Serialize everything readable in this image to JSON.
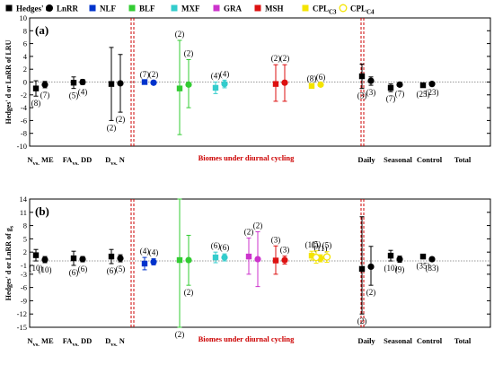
{
  "chart_data": {
    "type": "scatter",
    "legend": {
      "placement": "top",
      "entries": [
        {
          "key": "hedges",
          "label": "Hedges' d",
          "marker": "square",
          "color": "#000000"
        },
        {
          "key": "lnrr",
          "label": "LnRR",
          "marker": "circle",
          "color": "#000000"
        },
        {
          "key": "nlf",
          "label": "NLF",
          "marker": "square",
          "color": "#0033cc"
        },
        {
          "key": "blf",
          "label": "BLF",
          "marker": "square",
          "color": "#33cc33"
        },
        {
          "key": "mxf",
          "label": "MXF",
          "marker": "square",
          "color": "#33cccc"
        },
        {
          "key": "gra",
          "label": "GRA",
          "marker": "square",
          "color": "#cc33cc"
        },
        {
          "key": "msh",
          "label": "MSH",
          "marker": "square",
          "color": "#dd1111"
        },
        {
          "key": "cplc3",
          "label": "CPL",
          "sub": "C3",
          "marker": "square",
          "color": "#f4e400"
        },
        {
          "key": "cplc4",
          "label": "CPL",
          "sub": "C4",
          "marker": "circle-open",
          "color": "#f4e400"
        }
      ]
    },
    "categories": [
      "N vs. ME",
      "FA vs. DD",
      "D vs. N",
      "NLF",
      "BLF",
      "MXF",
      "GRA",
      "MSH",
      "CPL C3",
      "Daily",
      "Seasonal",
      "Control",
      "Total"
    ],
    "category_labels": [
      {
        "main": "N",
        "sub": "vs.",
        "tail": "ME"
      },
      {
        "main": "FA",
        "sub": "vs.",
        "tail": "DD"
      },
      {
        "main": "D",
        "sub": "vs.",
        "tail": "N"
      },
      {
        "main": "Daily"
      },
      {
        "main": "Seasonal"
      },
      {
        "main": "Control"
      },
      {
        "main": "Total"
      }
    ],
    "biome_label": "Biomes under diurnal cycling",
    "panels": [
      {
        "label": "(a)",
        "ylabel": "Hedges' d or LnRR of LRU",
        "ylim": [
          -10,
          10
        ],
        "yticks": [
          -10,
          -8,
          -6,
          -4,
          -2,
          0,
          2,
          4,
          6,
          8,
          10
        ],
        "grid": false,
        "points": [
          {
            "cat": 0,
            "series": "hedges",
            "y": -1.0,
            "lo": -2.2,
            "hi": 0.2,
            "n": "(8)"
          },
          {
            "cat": 0,
            "series": "lnrr",
            "y": -0.4,
            "lo": -0.9,
            "hi": 0.1,
            "n": "(7)"
          },
          {
            "cat": 1,
            "series": "hedges",
            "y": -0.1,
            "lo": -1.0,
            "hi": 0.8,
            "n": "(5)"
          },
          {
            "cat": 1,
            "series": "lnrr",
            "y": 0.0,
            "lo": -0.4,
            "hi": 0.4,
            "n": "(4)"
          },
          {
            "cat": 2,
            "series": "hedges",
            "y": -0.3,
            "lo": -6.0,
            "hi": 5.4,
            "n": "(2)"
          },
          {
            "cat": 2,
            "series": "lnrr",
            "y": -0.2,
            "lo": -4.7,
            "hi": 4.3,
            "n": "(2)"
          },
          {
            "cat": 3,
            "series": "nlf",
            "y": 0.0,
            "lo": -0.2,
            "hi": 0.2,
            "n": "(7)"
          },
          {
            "cat": 3,
            "series": "nlf",
            "y": -0.1,
            "lo": -0.4,
            "hi": 0.2,
            "n": "(2)",
            "shape": "circle"
          },
          {
            "cat": 4,
            "series": "blf",
            "y": -1.0,
            "lo": -8.2,
            "hi": 6.5,
            "n": "(2)"
          },
          {
            "cat": 4,
            "series": "blf",
            "y": -0.4,
            "lo": -4.0,
            "hi": 3.5,
            "n": "(2)",
            "shape": "circle"
          },
          {
            "cat": 5,
            "series": "mxf",
            "y": -0.9,
            "lo": -1.8,
            "hi": 0.0,
            "n": "(4)"
          },
          {
            "cat": 5,
            "series": "mxf",
            "y": -0.3,
            "lo": -0.9,
            "hi": 0.3,
            "n": "(4)",
            "shape": "circle"
          },
          {
            "cat": 7,
            "series": "msh",
            "y": -0.3,
            "lo": -3.0,
            "hi": 2.7,
            "n": "(2)"
          },
          {
            "cat": 7,
            "series": "msh",
            "y": -0.1,
            "lo": -3.0,
            "hi": 2.7,
            "n": "(2)",
            "shape": "circle"
          },
          {
            "cat": 8,
            "series": "cplc3",
            "y": -0.6,
            "lo": -0.8,
            "hi": -0.4,
            "n": "(8)"
          },
          {
            "cat": 8,
            "series": "cplc3",
            "y": -0.4,
            "lo": -0.6,
            "hi": -0.2,
            "n": "(6)",
            "shape": "circle"
          },
          {
            "cat": 9,
            "series": "hedges",
            "y": 0.9,
            "lo": -1.0,
            "hi": 2.8,
            "n": "(3)"
          },
          {
            "cat": 9,
            "series": "lnrr",
            "y": 0.2,
            "lo": -0.5,
            "hi": 0.8,
            "n": "(3)"
          },
          {
            "cat": 10,
            "series": "hedges",
            "y": -0.9,
            "lo": -1.5,
            "hi": -0.3,
            "n": "(7)"
          },
          {
            "cat": 10,
            "series": "lnrr",
            "y": -0.4,
            "lo": -0.7,
            "hi": -0.1,
            "n": "(7)"
          },
          {
            "cat": 11,
            "series": "hedges",
            "y": -0.5,
            "lo": -0.8,
            "hi": -0.2,
            "n": "(25)"
          },
          {
            "cat": 11,
            "series": "lnrr",
            "y": -0.3,
            "lo": -0.5,
            "hi": -0.1,
            "n": "(23)"
          }
        ]
      },
      {
        "label": "(b)",
        "ylabel": "Hedges' d or LnRR of g",
        "ylabel_sub": "s",
        "ylim": [
          -15,
          14
        ],
        "yticks": [
          -15,
          -12,
          -9,
          -6,
          -3,
          -1,
          2,
          5,
          8,
          11,
          14
        ],
        "grid": false,
        "points": [
          {
            "cat": 0,
            "series": "hedges",
            "y": 1.3,
            "lo": 0.0,
            "hi": 2.6,
            "n": "(10)"
          },
          {
            "cat": 0,
            "series": "lnrr",
            "y": 0.3,
            "lo": -0.4,
            "hi": 1.0,
            "n": "(10)"
          },
          {
            "cat": 1,
            "series": "hedges",
            "y": 0.6,
            "lo": -1.0,
            "hi": 2.2,
            "n": "(6)"
          },
          {
            "cat": 1,
            "series": "lnrr",
            "y": 0.4,
            "lo": -0.2,
            "hi": 1.0,
            "n": "(6)"
          },
          {
            "cat": 2,
            "series": "hedges",
            "y": 1.0,
            "lo": -0.6,
            "hi": 2.6,
            "n": "(6)"
          },
          {
            "cat": 2,
            "series": "lnrr",
            "y": 0.6,
            "lo": -0.2,
            "hi": 1.4,
            "n": "(5)"
          },
          {
            "cat": 3,
            "series": "nlf",
            "y": -0.6,
            "lo": -2.0,
            "hi": 0.8,
            "n": "(4)"
          },
          {
            "cat": 3,
            "series": "nlf",
            "y": -0.2,
            "lo": -0.9,
            "hi": 0.5,
            "n": "(4)",
            "shape": "circle"
          },
          {
            "cat": 4,
            "series": "blf",
            "y": 0.2,
            "lo": -15.0,
            "hi": 14.0,
            "n": "(2)"
          },
          {
            "cat": 4,
            "series": "blf",
            "y": 0.2,
            "lo": -5.5,
            "hi": 5.8,
            "n": "(2)",
            "shape": "circle"
          },
          {
            "cat": 5,
            "series": "mxf",
            "y": 0.8,
            "lo": -0.4,
            "hi": 2.0,
            "n": "(6)"
          },
          {
            "cat": 5,
            "series": "mxf",
            "y": 0.8,
            "lo": 0.0,
            "hi": 1.6,
            "n": "(6)",
            "shape": "circle"
          },
          {
            "cat": 6,
            "series": "gra",
            "y": 1.0,
            "lo": -3.0,
            "hi": 5.2,
            "n": "(2)"
          },
          {
            "cat": 6,
            "series": "gra",
            "y": 0.4,
            "lo": -5.8,
            "hi": 6.6,
            "n": "(2)",
            "shape": "circle"
          },
          {
            "cat": 7,
            "series": "msh",
            "y": 0.1,
            "lo": -3.0,
            "hi": 3.4,
            "n": "(3)"
          },
          {
            "cat": 7,
            "series": "msh",
            "y": 0.2,
            "lo": -0.7,
            "hi": 1.1,
            "n": "(3)",
            "shape": "circle"
          },
          {
            "cat": 8,
            "series": "cplc3",
            "y": 1.2,
            "lo": 0.2,
            "hi": 2.2,
            "n": "(11)"
          },
          {
            "cat": 8,
            "series": "cplc3",
            "y": 0.6,
            "lo": -0.2,
            "hi": 1.4,
            "n": "(11)",
            "shape": "circle"
          },
          {
            "cat": 8,
            "series": "cplc4",
            "y": 0.8,
            "lo": -0.5,
            "hi": 2.3,
            "n": "(5)",
            "dx": 22
          },
          {
            "cat": 8,
            "series": "cplc4",
            "y": 0.9,
            "lo": -0.3,
            "hi": 2.1,
            "n": "(5)",
            "dx": 34
          },
          {
            "cat": 9,
            "series": "hedges",
            "y": -1.8,
            "lo": -12.0,
            "hi": 10.0,
            "n": "(2)"
          },
          {
            "cat": 9,
            "series": "lnrr",
            "y": -1.3,
            "lo": -5.5,
            "hi": 3.3,
            "n": "(2)"
          },
          {
            "cat": 10,
            "series": "hedges",
            "y": 1.2,
            "lo": 0.0,
            "hi": 2.4,
            "n": "(10)"
          },
          {
            "cat": 10,
            "series": "lnrr",
            "y": 0.4,
            "lo": -0.3,
            "hi": 1.1,
            "n": "(9)"
          },
          {
            "cat": 11,
            "series": "hedges",
            "y": 1.0,
            "lo": 0.5,
            "hi": 1.5,
            "n": "(35)"
          },
          {
            "cat": 11,
            "series": "lnrr",
            "y": 0.4,
            "lo": 0.0,
            "hi": 0.8,
            "n": "(33)"
          }
        ]
      }
    ]
  }
}
